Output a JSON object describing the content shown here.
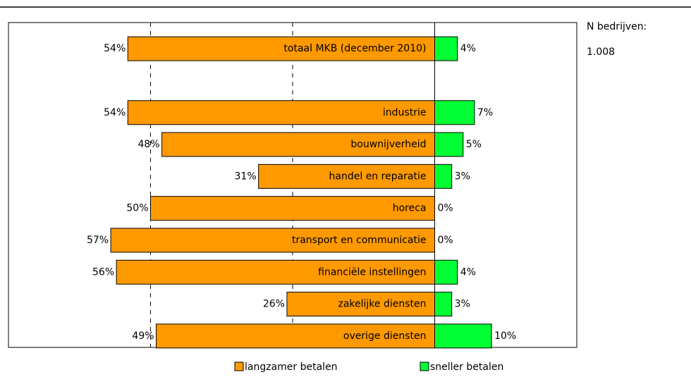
{
  "chart_data": {
    "type": "diverging-bar",
    "categories": [
      "totaal MKB (december 2010)",
      null,
      "industrie",
      "bouwnijverheid",
      "handel en reparatie",
      "horeca",
      "transport en communicatie",
      "financiële instellingen",
      "zakelijke diensten",
      "overige diensten"
    ],
    "series": [
      {
        "name": "langzamer betalen",
        "color": "#ff9900",
        "side": "left",
        "values": [
          54,
          null,
          54,
          48,
          31,
          50,
          57,
          56,
          26,
          49
        ],
        "value_labels": [
          "54%",
          null,
          "54%",
          "48%",
          "31%",
          "50%",
          "57%",
          "56%",
          "26%",
          "49%"
        ]
      },
      {
        "name": "sneller betalen",
        "color": "#00ff33",
        "side": "right",
        "values": [
          4,
          null,
          7,
          5,
          3,
          0,
          0,
          4,
          3,
          10
        ],
        "value_labels": [
          "4%",
          null,
          "7%",
          "5%",
          "3%",
          "0%",
          "0%",
          "4%",
          "3%",
          "10%"
        ]
      }
    ],
    "xlim": [
      -75,
      25
    ],
    "xticks": [
      -50,
      -25,
      0
    ],
    "grid": true,
    "annotation": {
      "label": "N bedrijven:",
      "value": "1.008"
    }
  }
}
